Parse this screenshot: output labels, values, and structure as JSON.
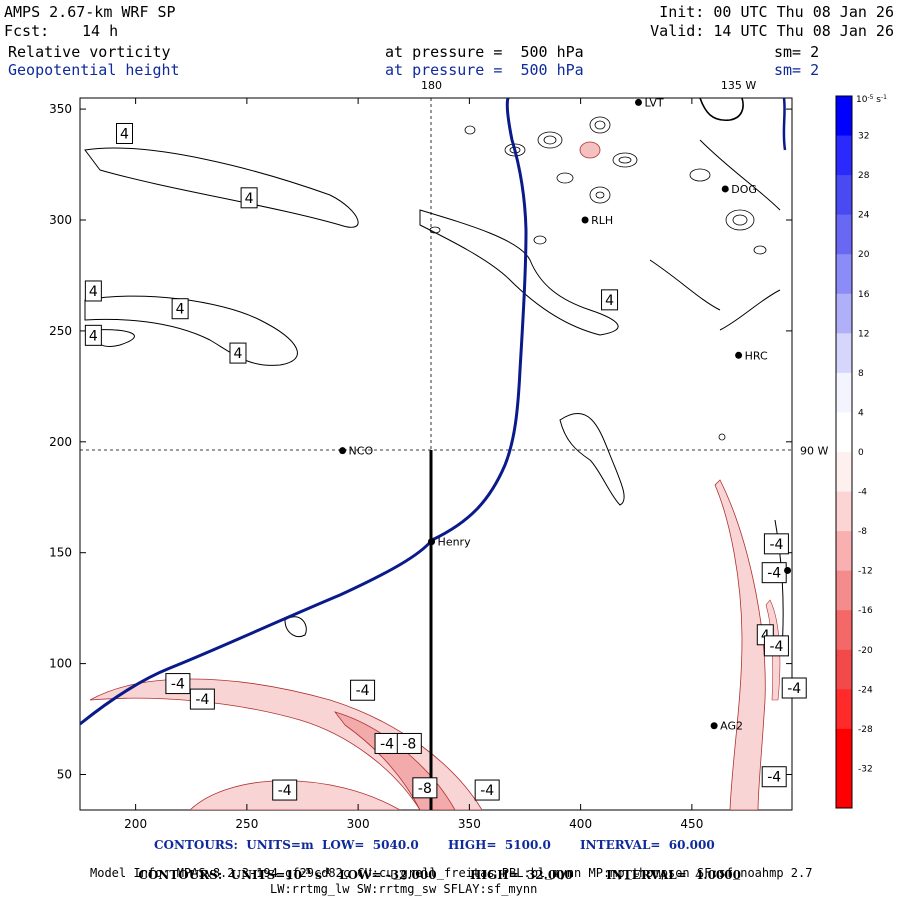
{
  "header": {
    "title": "AMPS 2.67-km WRF SP",
    "fcst_label": "Fcst:",
    "fcst_value": "14 h",
    "init": "Init: 00 UTC Thu 08 Jan 26",
    "valid": "Valid: 14 UTC Thu 08 Jan 26",
    "field1": "Relative vorticity",
    "field1_pressure": "at pressure =  500 hPa",
    "field1_sm": "sm= 2",
    "field2": "Geopotential height",
    "field2_pressure": "at pressure =  500 hPa",
    "field2_sm": "sm= 2"
  },
  "chart_data": {
    "type": "contour",
    "x_ticks": [
      200,
      250,
      300,
      350,
      400,
      450
    ],
    "y_ticks": [
      50,
      100,
      150,
      200,
      250,
      300,
      350
    ],
    "xlim": [
      175,
      495
    ],
    "ylim": [
      34,
      355
    ],
    "longitude_labels": [
      {
        "text": "180",
        "x": 333,
        "y": 355
      },
      {
        "text": "135 W",
        "x": 471,
        "y": 355
      },
      {
        "text": "90 W",
        "x": 495,
        "y": 196
      }
    ],
    "reference_lines": {
      "vertical_x": 333,
      "horizontal_y": 196
    },
    "stations": [
      {
        "name": "NCO",
        "x": 293,
        "y": 196
      },
      {
        "name": "Henry",
        "x": 333,
        "y": 155
      },
      {
        "name": "LVT",
        "x": 426,
        "y": 353
      },
      {
        "name": "DOG",
        "x": 465,
        "y": 314
      },
      {
        "name": "RLH",
        "x": 402,
        "y": 300
      },
      {
        "name": "HRC",
        "x": 471,
        "y": 239
      },
      {
        "name": "AG2",
        "x": 460,
        "y": 72
      },
      {
        "name": "",
        "x": 493,
        "y": 142
      }
    ],
    "height_contour": {
      "value_m": 5100,
      "points": [
        [
          175,
          72
        ],
        [
          200,
          95
        ],
        [
          240,
          115
        ],
        [
          290,
          136
        ],
        [
          320,
          149
        ],
        [
          340,
          161
        ],
        [
          355,
          180
        ],
        [
          362,
          200
        ],
        [
          366,
          240
        ],
        [
          367,
          280
        ],
        [
          368,
          320
        ],
        [
          366,
          345
        ],
        [
          367,
          355
        ]
      ]
    },
    "contour_labels": [
      {
        "text": "4",
        "x": 195,
        "y": 339
      },
      {
        "text": "4",
        "x": 251,
        "y": 310
      },
      {
        "text": "4",
        "x": 181,
        "y": 268
      },
      {
        "text": "4",
        "x": 220,
        "y": 260
      },
      {
        "text": "4",
        "x": 181,
        "y": 248
      },
      {
        "text": "4",
        "x": 246,
        "y": 240
      },
      {
        "text": "4",
        "x": 413,
        "y": 264
      },
      {
        "text": "4",
        "x": 483,
        "y": 113
      },
      {
        "text": "-4",
        "x": 488,
        "y": 154
      },
      {
        "text": "-4",
        "x": 487,
        "y": 141
      },
      {
        "text": "-4",
        "x": 488,
        "y": 108
      },
      {
        "text": "-4",
        "x": 496,
        "y": 89
      },
      {
        "text": "-4",
        "x": 487,
        "y": 49
      },
      {
        "text": "-4",
        "x": 219,
        "y": 91
      },
      {
        "text": "-4",
        "x": 230,
        "y": 84
      },
      {
        "text": "-4",
        "x": 302,
        "y": 88
      },
      {
        "text": "-4",
        "x": 313,
        "y": 64
      },
      {
        "text": "-8",
        "x": 323,
        "y": 64
      },
      {
        "text": "-8",
        "x": 330,
        "y": 44
      },
      {
        "text": "-4",
        "x": 267,
        "y": 43
      },
      {
        "text": "-4",
        "x": 358,
        "y": 43
      }
    ],
    "colorbar": {
      "unit_base": "10",
      "unit_exp": "-5",
      "unit_suffix": "s",
      "unit_suffix_exp": "-1",
      "levels": [
        32,
        28,
        24,
        20,
        16,
        12,
        8,
        4,
        0,
        -4,
        -8,
        -12,
        -16,
        -20,
        -24,
        -28,
        -32
      ],
      "colors": [
        "#0000ff",
        "#2a2aff",
        "#4a4af2",
        "#6868f4",
        "#8c8cf8",
        "#b0b0fa",
        "#d6d6fc",
        "#f4f4ff",
        "#ffffff",
        "#fff0f0",
        "#fcd4d4",
        "#f8b0b0",
        "#f48c8c",
        "#f46868",
        "#f24a4a",
        "#ff2a2a",
        "#ff0000"
      ]
    }
  },
  "footer": {
    "line1": "CONTOURS:  UNITS=m  LOW=  5040.0       HIGH=  5100.0       INTERVAL=  60.000",
    "line2a": "CONTOURS:  UNITS=10",
    "line2exp": "-5",
    "line2b": " s",
    "line2exp2": "-1",
    "line2c": "  LOW= -32.000        HIGH=  32.000        INTERVAL=  4.0000",
    "line3": "Model Info: MPASv8.2.3-194-gf29cd82c CU:cu_grell_freitas PBL:bl_mynn MP:mp_thompson SF:sf_noahmp 2.7",
    "line4": "LW:rrtmg_lw SW:rrtmg_sw SFLAY:sf_mynn"
  },
  "colors": {
    "height_line": "#0a1a8a",
    "neg_fill": "#f9d4d4",
    "neg_fill2": "#f2aaaa"
  }
}
